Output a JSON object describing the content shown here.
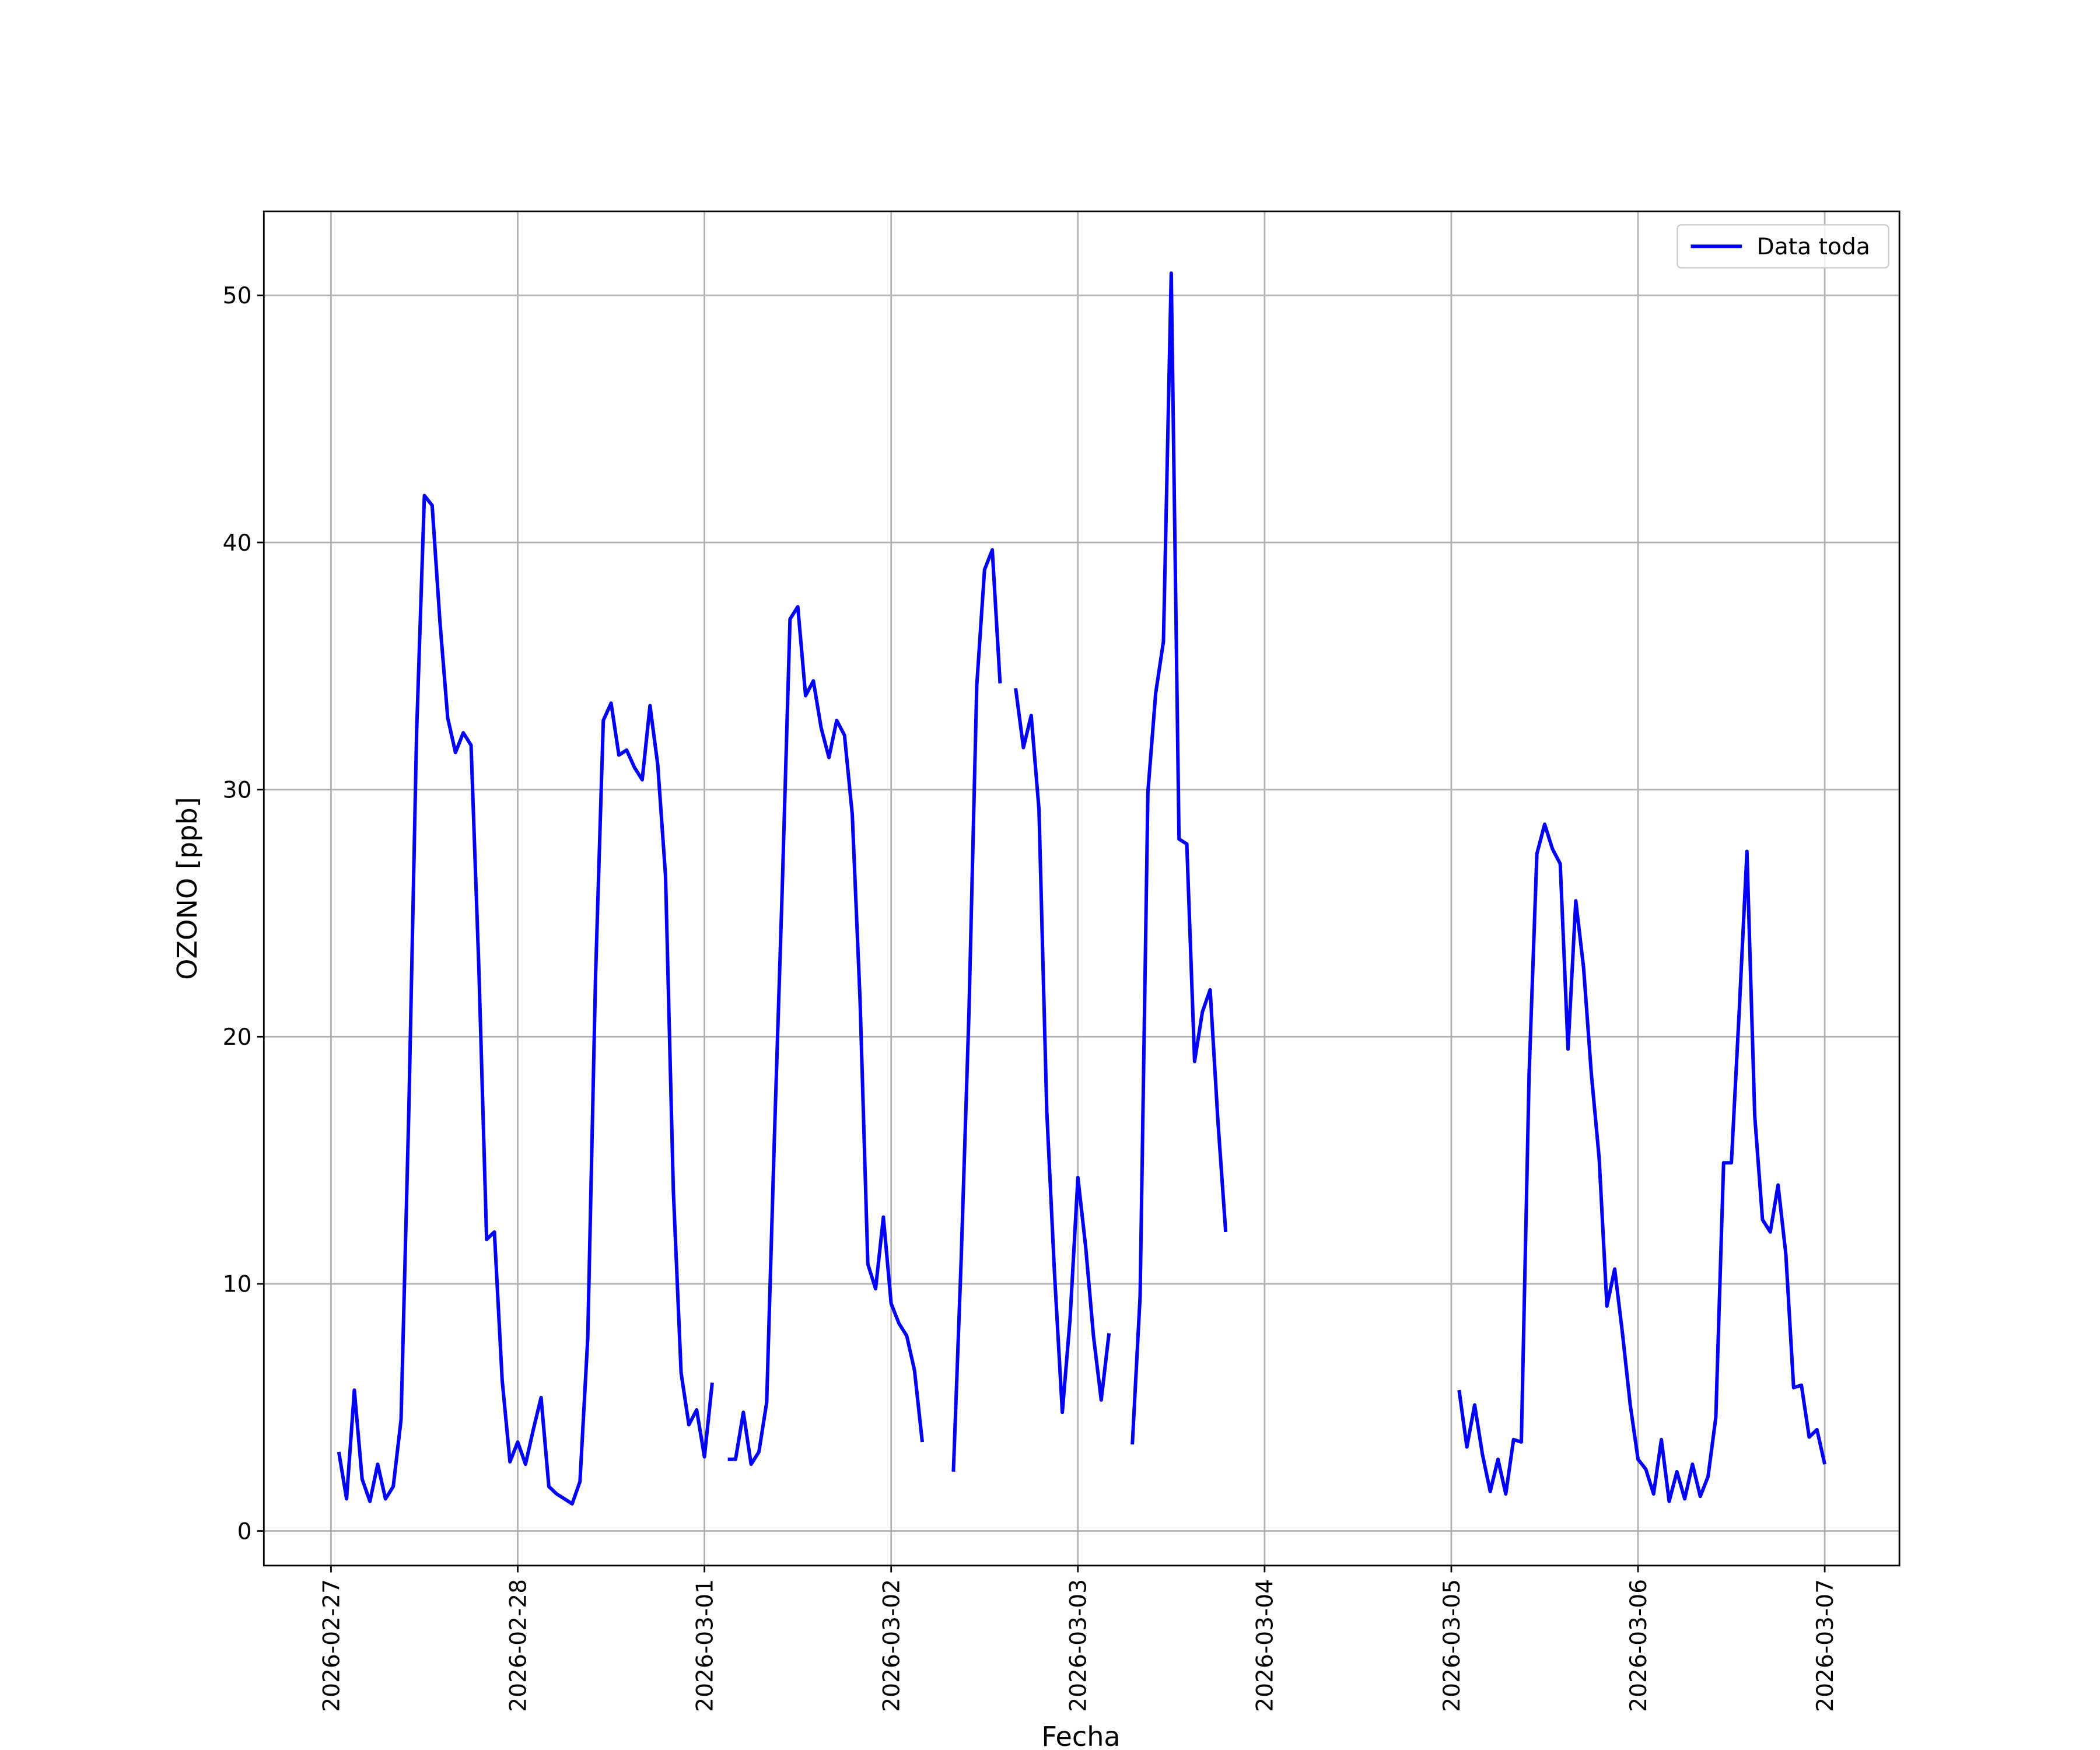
{
  "chart_data": {
    "type": "line",
    "xlabel": "Fecha",
    "ylabel": "OZONO [ppb]",
    "x": [
      "2026-02-27T01:00",
      "2026-02-27T02:00",
      "2026-02-27T03:00",
      "2026-02-27T04:00",
      "2026-02-27T05:00",
      "2026-02-27T06:00",
      "2026-02-27T07:00",
      "2026-02-27T08:00",
      "2026-02-27T09:00",
      "2026-02-27T10:00",
      "2026-02-27T11:00",
      "2026-02-27T12:00",
      "2026-02-27T13:00",
      "2026-02-27T14:00",
      "2026-02-27T15:00",
      "2026-02-27T16:00",
      "2026-02-27T17:00",
      "2026-02-27T18:00",
      "2026-02-27T19:00",
      "2026-02-27T20:00",
      "2026-02-27T21:00",
      "2026-02-27T22:00",
      "2026-02-27T23:00",
      "2026-02-28T00:00",
      "2026-02-28T01:00",
      "2026-02-28T02:00",
      "2026-02-28T03:00",
      "2026-02-28T04:00",
      "2026-02-28T05:00",
      "2026-02-28T06:00",
      "2026-02-28T07:00",
      "2026-02-28T08:00",
      "2026-02-28T09:00",
      "2026-02-28T10:00",
      "2026-02-28T11:00",
      "2026-02-28T12:00",
      "2026-02-28T13:00",
      "2026-02-28T14:00",
      "2026-02-28T15:00",
      "2026-02-28T16:00",
      "2026-02-28T17:00",
      "2026-02-28T18:00",
      "2026-02-28T19:00",
      "2026-02-28T20:00",
      "2026-02-28T21:00",
      "2026-02-28T22:00",
      "2026-02-28T23:00",
      "2026-03-01T00:00",
      "2026-03-01T01:00",
      "2026-03-01T02:00",
      "2026-03-01T03:00",
      "2026-03-01T04:00",
      "2026-03-01T05:00",
      "2026-03-01T06:00",
      "2026-03-01T07:00",
      "2026-03-01T08:00",
      "2026-03-01T09:00",
      "2026-03-01T10:00",
      "2026-03-01T11:00",
      "2026-03-01T12:00",
      "2026-03-01T13:00",
      "2026-03-01T14:00",
      "2026-03-01T15:00",
      "2026-03-01T16:00",
      "2026-03-01T17:00",
      "2026-03-01T18:00",
      "2026-03-01T19:00",
      "2026-03-01T20:00",
      "2026-03-01T21:00",
      "2026-03-01T22:00",
      "2026-03-01T23:00",
      "2026-03-02T00:00",
      "2026-03-02T01:00",
      "2026-03-02T02:00",
      "2026-03-02T03:00",
      "2026-03-02T04:00",
      "2026-03-02T05:00",
      "2026-03-02T06:00",
      "2026-03-02T07:00",
      "2026-03-02T08:00",
      "2026-03-02T09:00",
      "2026-03-02T10:00",
      "2026-03-02T11:00",
      "2026-03-02T12:00",
      "2026-03-02T13:00",
      "2026-03-02T14:00",
      "2026-03-02T15:00",
      "2026-03-02T16:00",
      "2026-03-02T17:00",
      "2026-03-02T18:00",
      "2026-03-02T19:00",
      "2026-03-02T20:00",
      "2026-03-02T21:00",
      "2026-03-02T22:00",
      "2026-03-02T23:00",
      "2026-03-03T00:00",
      "2026-03-03T01:00",
      "2026-03-03T02:00",
      "2026-03-03T03:00",
      "2026-03-03T04:00",
      "2026-03-03T05:00",
      "2026-03-03T06:00",
      "2026-03-03T07:00",
      "2026-03-03T08:00",
      "2026-03-03T09:00",
      "2026-03-03T10:00",
      "2026-03-03T11:00",
      "2026-03-03T12:00",
      "2026-03-03T13:00",
      "2026-03-03T14:00",
      "2026-03-03T15:00",
      "2026-03-03T16:00",
      "2026-03-03T17:00",
      "2026-03-03T18:00",
      "2026-03-03T19:00",
      "2026-03-03T20:00",
      "2026-03-03T21:00",
      "2026-03-03T22:00",
      "2026-03-03T23:00",
      "2026-03-04T00:00",
      "2026-03-04T01:00",
      "2026-03-04T02:00",
      "2026-03-04T03:00",
      "2026-03-04T04:00",
      "2026-03-04T05:00",
      "2026-03-04T06:00",
      "2026-03-04T07:00",
      "2026-03-04T08:00",
      "2026-03-04T09:00",
      "2026-03-04T10:00",
      "2026-03-04T11:00",
      "2026-03-04T12:00",
      "2026-03-04T13:00",
      "2026-03-04T14:00",
      "2026-03-04T15:00",
      "2026-03-04T16:00",
      "2026-03-04T17:00",
      "2026-03-04T18:00",
      "2026-03-04T19:00",
      "2026-03-04T20:00",
      "2026-03-04T21:00",
      "2026-03-04T22:00",
      "2026-03-04T23:00",
      "2026-03-05T00:00",
      "2026-03-05T01:00",
      "2026-03-05T02:00",
      "2026-03-05T03:00",
      "2026-03-05T04:00",
      "2026-03-05T05:00",
      "2026-03-05T06:00",
      "2026-03-05T07:00",
      "2026-03-05T08:00",
      "2026-03-05T09:00",
      "2026-03-05T10:00",
      "2026-03-05T11:00",
      "2026-03-05T12:00",
      "2026-03-05T13:00",
      "2026-03-05T14:00",
      "2026-03-05T15:00",
      "2026-03-05T16:00",
      "2026-03-05T17:00",
      "2026-03-05T18:00",
      "2026-03-05T19:00",
      "2026-03-05T20:00",
      "2026-03-05T21:00",
      "2026-03-05T22:00",
      "2026-03-05T23:00",
      "2026-03-06T00:00",
      "2026-03-06T01:00",
      "2026-03-06T02:00",
      "2026-03-06T03:00",
      "2026-03-06T04:00",
      "2026-03-06T05:00",
      "2026-03-06T06:00",
      "2026-03-06T07:00",
      "2026-03-06T08:00",
      "2026-03-06T09:00",
      "2026-03-06T10:00",
      "2026-03-06T11:00",
      "2026-03-06T12:00",
      "2026-03-06T13:00",
      "2026-03-06T14:00",
      "2026-03-06T15:00",
      "2026-03-06T16:00",
      "2026-03-06T17:00",
      "2026-03-06T18:00",
      "2026-03-06T19:00",
      "2026-03-06T20:00",
      "2026-03-06T21:00",
      "2026-03-06T22:00",
      "2026-03-06T23:00",
      "2026-03-07T00:00"
    ],
    "series": [
      {
        "name": "Data toda",
        "color": "#0000ff",
        "values": [
          3.2,
          1.3,
          5.7,
          2.1,
          1.2,
          2.7,
          1.3,
          1.8,
          4.5,
          17,
          32.3,
          41.9,
          41.5,
          36.8,
          32.9,
          31.5,
          32.3,
          31.8,
          22.8,
          11.8,
          12.1,
          6.1,
          2.8,
          3.6,
          2.7,
          4.1,
          5.4,
          1.8,
          1.5,
          1.3,
          1.1,
          2.0,
          7.8,
          22.4,
          32.8,
          33.5,
          31.4,
          31.6,
          30.9,
          30.4,
          33.4,
          31.0,
          26.5,
          13.8,
          6.4,
          4.3,
          4.9,
          3.0,
          6.0,
          null,
          2.9,
          2.9,
          4.8,
          2.7,
          3.2,
          5.2,
          16,
          26,
          36.9,
          37.4,
          33.8,
          34.4,
          32.5,
          31.3,
          32.8,
          32.2,
          29.0,
          21.5,
          10.8,
          9.8,
          12.7,
          9.2,
          8.4,
          7.9,
          6.5,
          3.6,
          null,
          null,
          null,
          2.4,
          11,
          21,
          34.2,
          38.9,
          39.7,
          34.3,
          null,
          34.1,
          31.7,
          33.0,
          29.2,
          17.0,
          10.4,
          4.8,
          8.6,
          14.3,
          11.5,
          7.9,
          5.3,
          8.0,
          null,
          null,
          3.5,
          9.5,
          29.9,
          33.9,
          36.0,
          50.9,
          28.0,
          27.8,
          19.0,
          21.0,
          21.9,
          16.6,
          12.1,
          null,
          null,
          null,
          null,
          null,
          null,
          null,
          null,
          null,
          null,
          null,
          null,
          null,
          null,
          null,
          null,
          null,
          null,
          null,
          null,
          null,
          null,
          null,
          null,
          null,
          null,
          null,
          null,
          null,
          5.7,
          3.4,
          5.1,
          3.1,
          1.6,
          2.9,
          1.5,
          3.7,
          3.6,
          18.5,
          27.4,
          28.6,
          27.6,
          27.0,
          19.5,
          25.5,
          22.8,
          18.5,
          15.1,
          9.1,
          10.6,
          8.0,
          5.1,
          2.9,
          2.5,
          1.5,
          3.7,
          1.2,
          2.4,
          1.3,
          2.7,
          1.4,
          2.2,
          4.6,
          14.9,
          14.9,
          21,
          27.5,
          16.8,
          12.6,
          12.1,
          14.0,
          11.2,
          5.8,
          5.9,
          3.8,
          4.1,
          2.7
        ]
      }
    ],
    "xlim": [
      "2026-02-26T15:22",
      "2026-03-07T09:36"
    ],
    "xticks": [
      "2026-02-27",
      "2026-02-28",
      "2026-03-01",
      "2026-03-02",
      "2026-03-03",
      "2026-03-04",
      "2026-03-05",
      "2026-03-06",
      "2026-03-07"
    ],
    "ylim": [
      -1.4,
      53.4
    ],
    "yticks": [
      0,
      10,
      20,
      30,
      40,
      50
    ],
    "grid": true,
    "legend": "upper right"
  }
}
